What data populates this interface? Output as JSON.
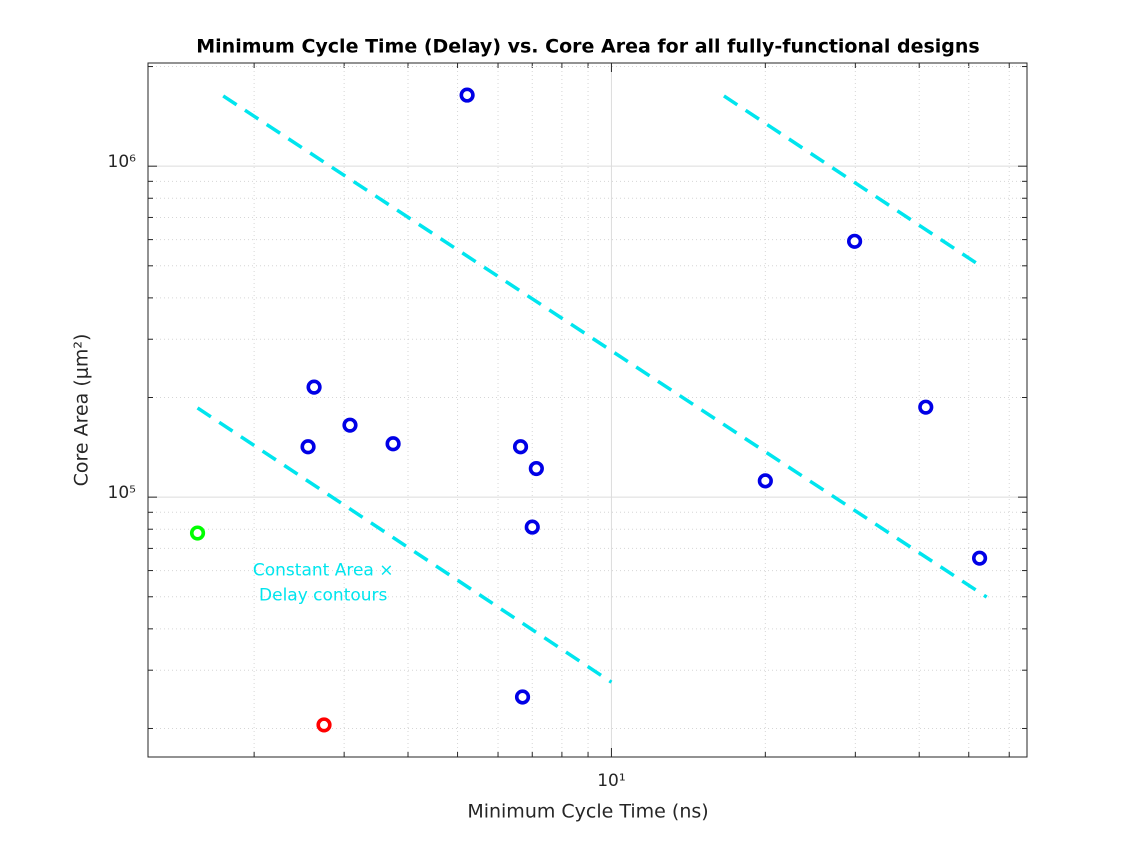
{
  "chart_data": {
    "type": "scatter",
    "title": "Minimum Cycle Time (Delay) vs. Core Area for all fully-functional designs",
    "x_label": "Minimum Cycle Time (ns)",
    "y_label": "Core Area (μm²)",
    "xscale": "log",
    "yscale": "log",
    "grid": true,
    "minor_grid": true,
    "xlim": [
      1.24,
      65
    ],
    "ylim": [
      16400,
      2050000
    ],
    "xticks": [
      {
        "value": 10,
        "label": "10¹"
      }
    ],
    "yticks": [
      {
        "value": 100000,
        "label": "10⁵"
      },
      {
        "value": 1000000,
        "label": "10⁶"
      }
    ],
    "xminorticks": [
      2,
      3,
      4,
      5,
      6,
      7,
      8,
      9,
      20,
      30,
      40,
      50,
      60
    ],
    "yminorticks": [
      20000,
      30000,
      40000,
      50000,
      60000,
      70000,
      80000,
      90000,
      200000,
      300000,
      400000,
      500000,
      600000,
      700000,
      800000,
      900000,
      2000000
    ],
    "series": [
      {
        "color": "#0000e6",
        "x": [
          5.22,
          29.9,
          2.62,
          3.08,
          2.55,
          3.74,
          6.64,
          7.13,
          7.0,
          6.7,
          20.0,
          41.2,
          52.5
        ],
        "values": [
          1640000,
          593000,
          215000,
          165000,
          142000,
          145000,
          142000,
          122000,
          81200,
          24900,
          112000,
          187000,
          65400
        ]
      },
      {
        "color": "#00ff00",
        "x": [
          1.55
        ],
        "values": [
          77900
        ]
      },
      {
        "color": "#ff0000",
        "x": [
          2.74
        ],
        "values": [
          20500
        ]
      }
    ],
    "contours": [
      {
        "color": "#00e5ee",
        "x": [
          1.55,
          10
        ],
        "values": [
          186000,
          27600
        ]
      },
      {
        "color": "#00e5ee",
        "x": [
          1.74,
          54.2
        ],
        "values": [
          1630000,
          49900
        ]
      },
      {
        "color": "#00e5ee",
        "x": [
          16.6,
          52.5
        ],
        "values": [
          1630000,
          502000
        ]
      }
    ],
    "annotation": {
      "color": "#00e5ee",
      "lines": [
        "Constant Area ×",
        "Delay contours"
      ],
      "x": 2.73,
      "y": 55000
    }
  }
}
